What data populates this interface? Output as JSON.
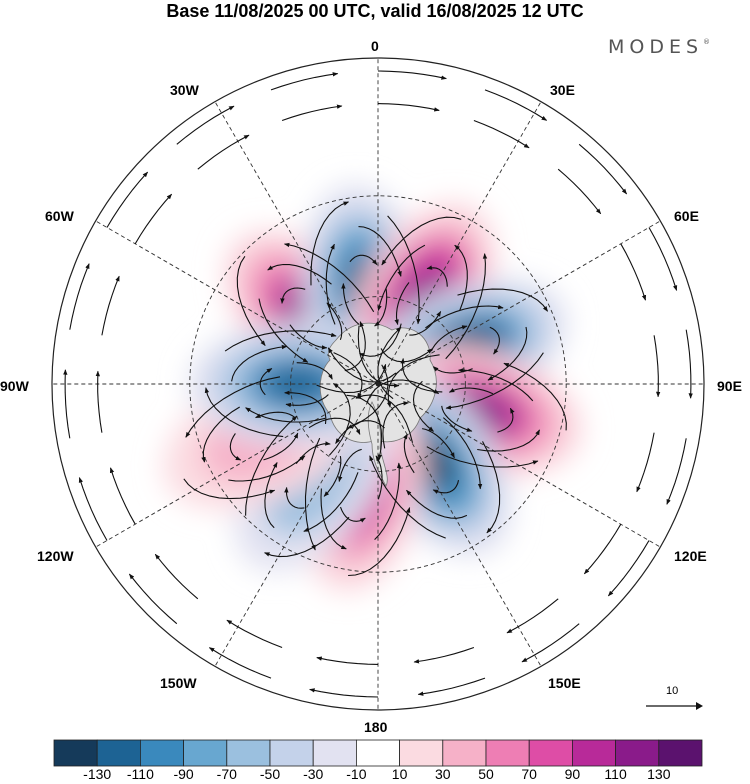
{
  "title": "Base 11/08/2025 00 UTC, valid 16/08/2025 12 UTC",
  "logo": "MODES",
  "logo_mark": "®",
  "longitude_labels": [
    "0",
    "30E",
    "60E",
    "90E",
    "120E",
    "150E",
    "180",
    "150W",
    "120W",
    "90W",
    "60W",
    "30W"
  ],
  "reference_vector": {
    "label": "10"
  },
  "colorbar": {
    "ticks": [
      "-130",
      "-110",
      "-90",
      "-70",
      "-50",
      "-30",
      "-10",
      "10",
      "30",
      "50",
      "70",
      "90",
      "110",
      "130"
    ],
    "colors": [
      "#153a5a",
      "#1d6394",
      "#3a89bd",
      "#68a7d0",
      "#9bc0df",
      "#c4d2ea",
      "#e2e2f1",
      "#ffffff",
      "#fbdbe1",
      "#f6b1c8",
      "#ee7eb4",
      "#de4da6",
      "#b82a99",
      "#8a1b8a",
      "#5b126e"
    ]
  },
  "anomaly_centers": [
    {
      "id": "c1",
      "lon": -45,
      "lat": -58,
      "value": 120
    },
    {
      "id": "c2",
      "lon": -8,
      "lat": -58,
      "value": -135
    },
    {
      "id": "c3",
      "lon": 28,
      "lat": -58,
      "value": 125
    },
    {
      "id": "c4",
      "lon": 68,
      "lat": -58,
      "value": -140
    },
    {
      "id": "c5",
      "lon": 105,
      "lat": -55,
      "value": 120
    },
    {
      "id": "c6",
      "lon": 145,
      "lat": -58,
      "value": -135
    },
    {
      "id": "c7",
      "lon": -170,
      "lat": -55,
      "value": 105
    },
    {
      "id": "c8",
      "lon": -145,
      "lat": -52,
      "value": -60
    },
    {
      "id": "c9",
      "lon": -115,
      "lat": -48,
      "value": 40
    },
    {
      "id": "c10",
      "lon": -90,
      "lat": -62,
      "value": -115
    }
  ]
}
